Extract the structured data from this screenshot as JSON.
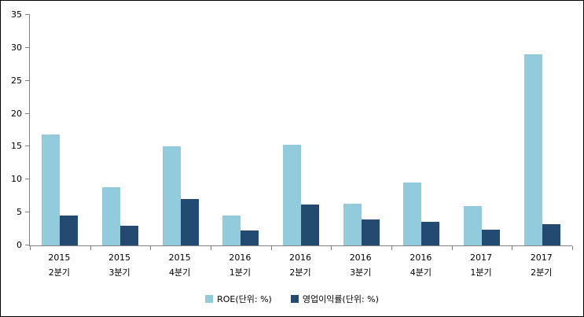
{
  "chart_data": {
    "type": "bar",
    "title": "",
    "categories": [
      {
        "line1": "2015",
        "line2": "2분기"
      },
      {
        "line1": "2015",
        "line2": "3분기"
      },
      {
        "line1": "2015",
        "line2": "4분기"
      },
      {
        "line1": "2016",
        "line2": "1분기"
      },
      {
        "line1": "2016",
        "line2": "2분기"
      },
      {
        "line1": "2016",
        "line2": "3분기"
      },
      {
        "line1": "2016",
        "line2": "4분기"
      },
      {
        "line1": "2017",
        "line2": "1분기"
      },
      {
        "line1": "2017",
        "line2": "2분기"
      }
    ],
    "series": [
      {
        "key": "roe",
        "name": "ROE(단위: %)",
        "color": "#92CBDC",
        "values": [
          16.8,
          8.8,
          15.1,
          4.5,
          15.3,
          6.3,
          9.6,
          6.0,
          29.0
        ]
      },
      {
        "key": "operating-margin",
        "name": "영업이익률(단위: %)",
        "color": "#234A70",
        "values": [
          4.6,
          3.0,
          7.0,
          2.3,
          6.2,
          4.0,
          3.6,
          2.4,
          3.2
        ]
      }
    ],
    "xlabel": "",
    "ylabel": "",
    "ylim": [
      0,
      35
    ],
    "yticks": [
      0,
      5,
      10,
      15,
      20,
      25,
      30,
      35
    ],
    "grid": false,
    "legend_position": "bottom",
    "axis_color": "#808080",
    "text_color": "#000000",
    "background": "#FFFFFF",
    "border_color": "#000000"
  }
}
